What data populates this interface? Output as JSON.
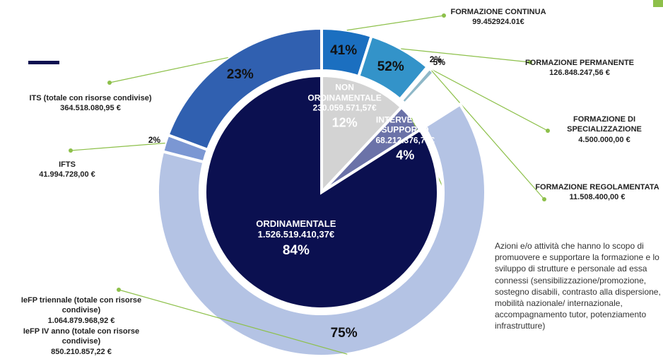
{
  "chart_data": {
    "type": "pie",
    "slices": [
      {
        "name": "NON ORDINAMENTALE",
        "amount": "230.059.571,57€",
        "value": 12,
        "value_label": "12%",
        "color": "#d3d3d3",
        "children": [
          {
            "value": 41,
            "value_label": "41%",
            "color": "#1b6fc0",
            "callouts": [
              {
                "name": "FORMAZIONE CONTINUA",
                "amount": "99.452924.01€"
              }
            ]
          },
          {
            "value": 52,
            "value_label": "52%",
            "color": "#3393c9",
            "callouts": [
              {
                "name": "FORMAZIONE PERMANENTE",
                "amount": "126.848.247,56 €"
              }
            ]
          },
          {
            "value": 2,
            "value_label": "2%",
            "color": "#4a86b4",
            "callouts": [
              {
                "name": "FORMAZIONE DI SPECIALIZZAZIONE",
                "amount": "4.500.000,00 €"
              }
            ]
          },
          {
            "value": 5,
            "value_label": "5%",
            "color": "#8fb8c8",
            "callouts": [
              {
                "name": "FORMAZIONE REGOLAMENTATA",
                "amount": "11.508.400,00 €"
              }
            ]
          }
        ]
      },
      {
        "name": "INTERVENTI A SUPPORTO",
        "amount": "68.212.376,78€",
        "value": 4,
        "value_label": "4%",
        "color": "#6b72a8",
        "note": "Azioni e/o attività che hanno lo scopo di promuovere e supportare la formazione e lo sviluppo di strutture e personale ad essa connessi (sensibilizzazione/promozione, sostegno disabili, contrasto alla dispersione, mobilità nazionale/ internazionale, accompagnamento tutor, potenziamento infrastrutture)",
        "children": []
      },
      {
        "name": "ORDINAMENTALE",
        "amount": "1.526.519.410,37€",
        "value": 84,
        "value_label": "84%",
        "color": "#0b1050",
        "children": [
          {
            "value": 75,
            "value_label": "75%",
            "color": "#b4c3e4",
            "callouts": [
              {
                "name": "IeFP triennale (totale con risorse condivise)",
                "amount": "1.064.879.968,92 €"
              },
              {
                "name": "IeFP IV anno (totale con risorse condivise)",
                "amount": "850.210.857,22 €"
              }
            ]
          },
          {
            "value": 2,
            "value_label": "2%",
            "color": "#7b97d3",
            "callouts": [
              {
                "name": "IFTS",
                "amount": "41.994.728,00 €"
              }
            ]
          },
          {
            "value": 23,
            "value_label": "23%",
            "color": "#3060b0",
            "callouts": [
              {
                "name": "ITS (totale con risorse condivise)",
                "amount": "364.518.080,95 €"
              }
            ]
          }
        ]
      }
    ]
  }
}
